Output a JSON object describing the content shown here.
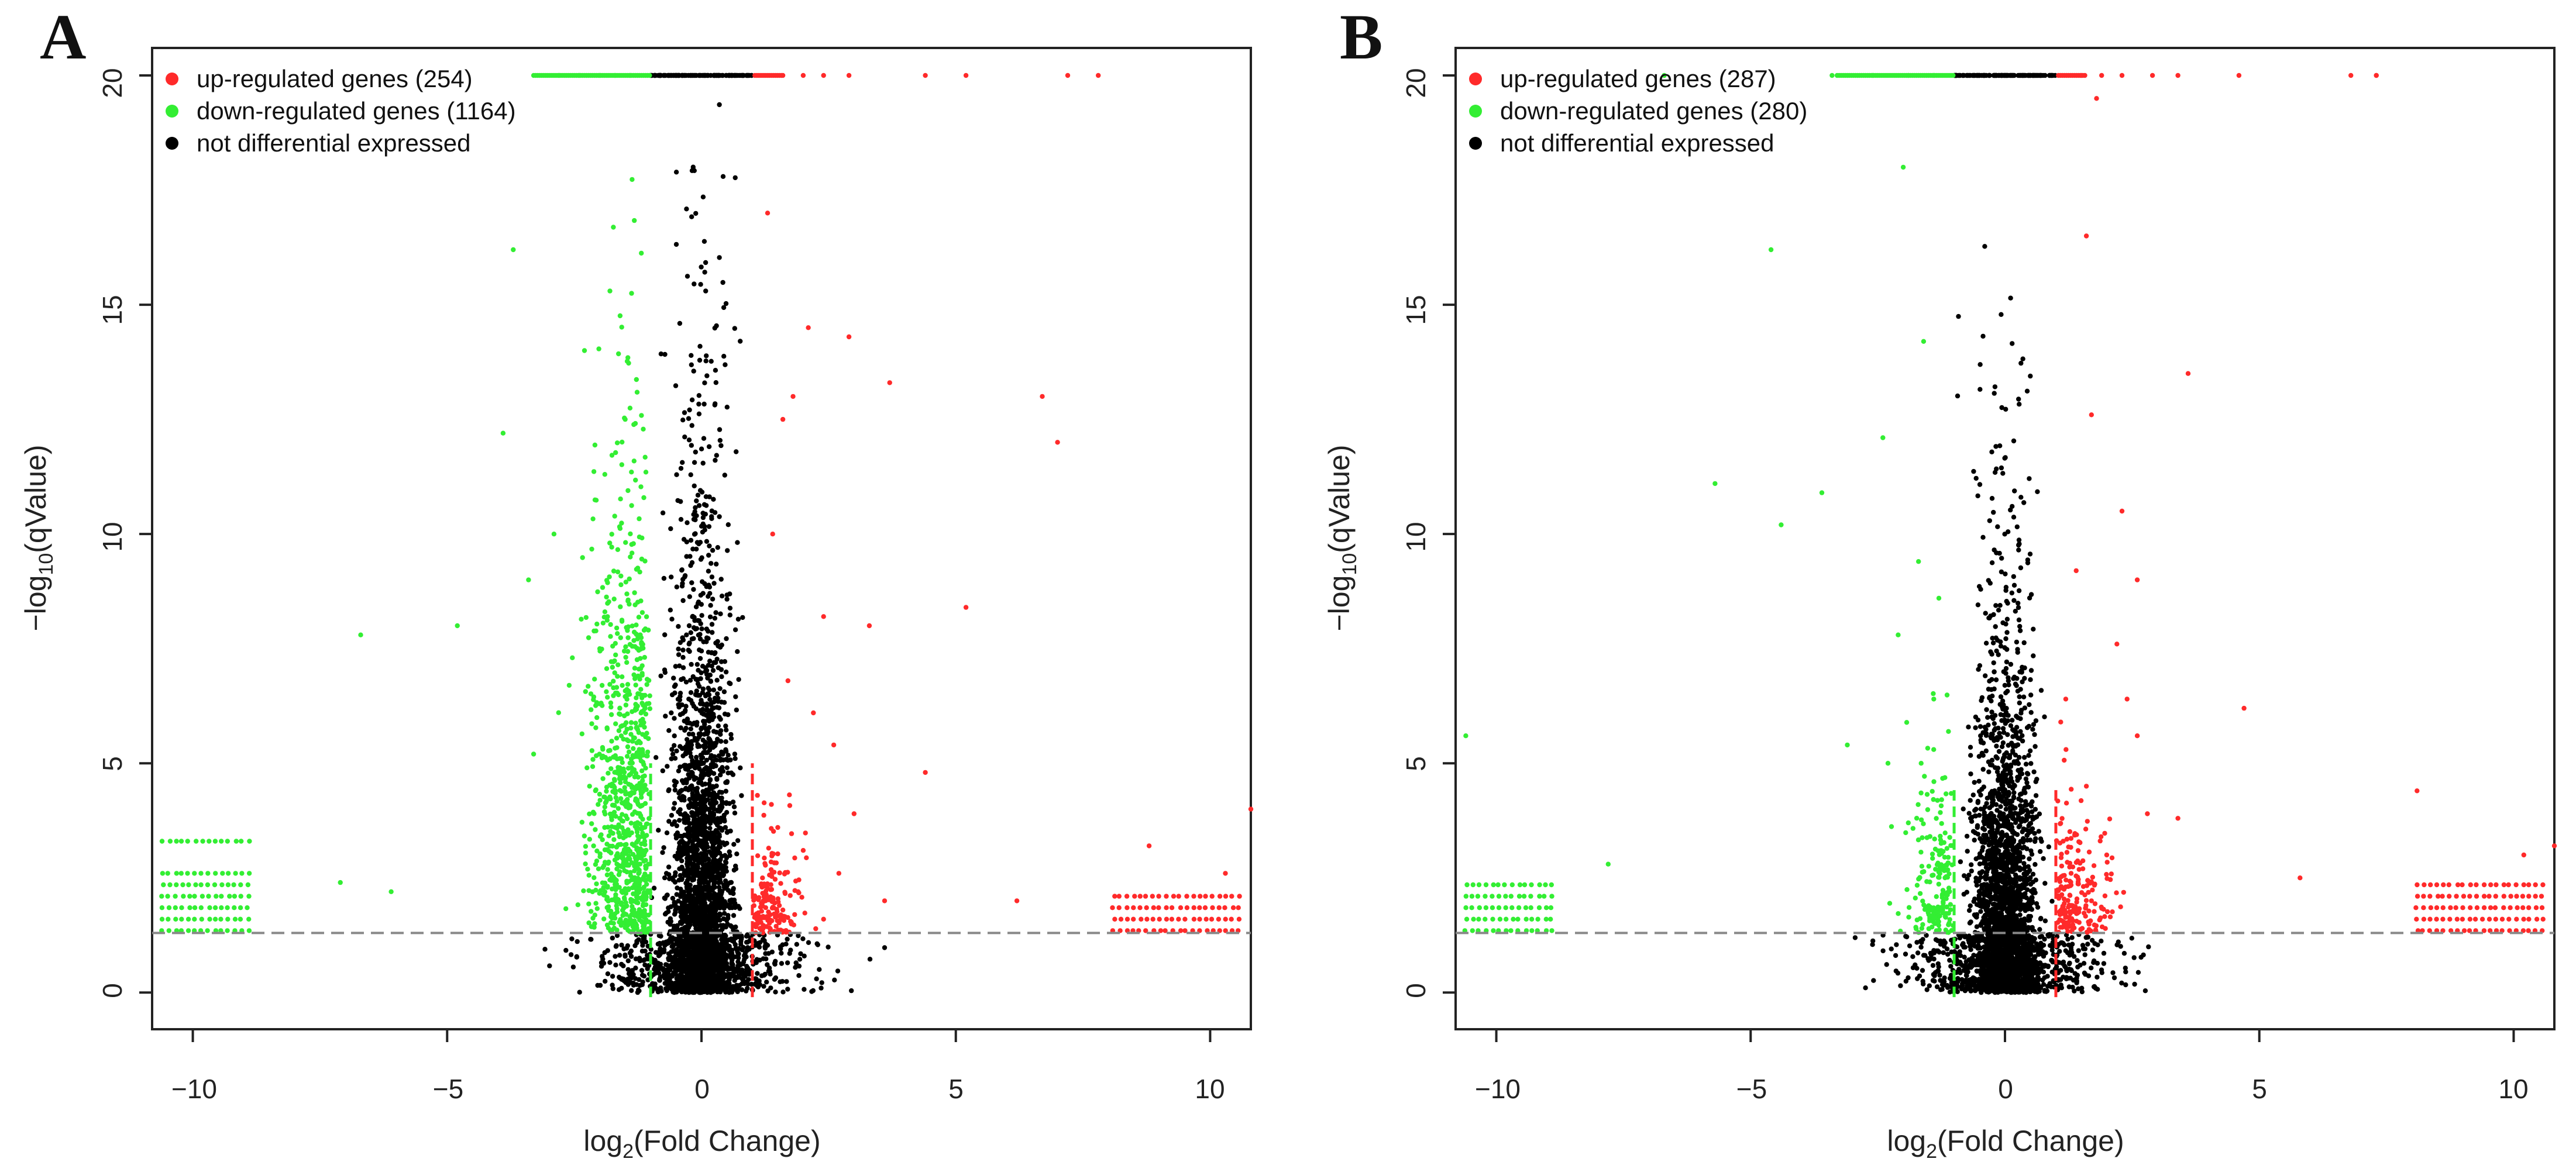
{
  "chart_data": [
    {
      "type": "scatter",
      "panel": "A",
      "title": "",
      "xlabel": "log2(Fold Change)",
      "ylabel": "-log10(qValue)",
      "xlim": [
        -10.8,
        10.8
      ],
      "ylim": [
        -0.8,
        20.6
      ],
      "xticks": [
        -10,
        -5,
        0,
        5,
        10
      ],
      "yticks": [
        0,
        5,
        10,
        15,
        20
      ],
      "grid": false,
      "legend_position": "top-left",
      "fc_threshold": 1,
      "q_threshold_line": 1.3,
      "series": [
        {
          "name": "up-regulated genes (254)",
          "color": "#ff2a2a",
          "count": 254
        },
        {
          "name": "down-regulated genes (1164)",
          "color": "#33ee33",
          "count": 1164
        },
        {
          "name": "not differential expressed",
          "color": "#000000"
        }
      ],
      "points": {
        "up": [
          [
            1.3,
            17
          ],
          [
            1.6,
            12.5
          ],
          [
            2.1,
            14.5
          ],
          [
            2.9,
            14.3
          ],
          [
            3.7,
            13.3
          ],
          [
            5.2,
            8.4
          ],
          [
            3.3,
            8
          ],
          [
            1.8,
            13
          ],
          [
            2.6,
            5.4
          ],
          [
            4.4,
            4.8
          ],
          [
            2.4,
            8.2
          ],
          [
            1.4,
            10
          ],
          [
            1.7,
            6.8
          ],
          [
            2.2,
            6.1
          ],
          [
            3.0,
            3.9
          ],
          [
            1.1,
            4.3
          ],
          [
            1.5,
            3.6
          ],
          [
            2.0,
            3.1
          ],
          [
            2.7,
            2.6
          ],
          [
            1.9,
            2.2
          ],
          [
            1.2,
            2.5
          ],
          [
            1.6,
            1.8
          ],
          [
            2.4,
            1.6
          ],
          [
            3.6,
            2.0
          ],
          [
            6.2,
            2.0
          ],
          [
            8.8,
            3.2
          ],
          [
            10.3,
            2.6
          ],
          [
            10.8,
            4.0
          ],
          [
            7.0,
            12
          ],
          [
            6.7,
            13
          ]
        ],
        "down": [
          [
            -3.7,
            16.2
          ],
          [
            -2.3,
            14
          ],
          [
            -3.9,
            12.2
          ],
          [
            -1.8,
            15.3
          ],
          [
            -4.8,
            8
          ],
          [
            -6.7,
            7.8
          ],
          [
            -3.3,
            5.2
          ],
          [
            -2.0,
            7.5
          ],
          [
            -1.4,
            9.5
          ],
          [
            -2.9,
            10
          ],
          [
            -1.5,
            12.5
          ],
          [
            -2.2,
            4.5
          ],
          [
            -6.1,
            2.2
          ],
          [
            -7.1,
            2.4
          ],
          [
            -1.6,
            3.8
          ],
          [
            -3.4,
            9.0
          ],
          [
            -2.6,
            6.7
          ],
          [
            -1.9,
            11.3
          ]
        ],
        "flat_groups": [
          {
            "kind": "down",
            "x_min": -10.6,
            "x_max": -8.9,
            "y_values": [
              1.35,
              1.6,
              1.85,
              2.1,
              2.35,
              2.6,
              3.3
            ]
          },
          {
            "kind": "up",
            "x_min": 8.1,
            "x_max": 10.7,
            "y_values": [
              1.35,
              1.6,
              1.85,
              2.1
            ]
          }
        ],
        "capped_up_x": [
          1.6,
          2.0,
          2.4,
          2.9,
          4.4,
          5.2,
          7.2,
          7.8
        ],
        "capped_down_x": [
          -2.8,
          -2.4,
          -2.0,
          -1.7,
          -1.4
        ]
      }
    },
    {
      "type": "scatter",
      "panel": "B",
      "title": "",
      "xlabel": "log2(Fold Change)",
      "ylabel": "-log10(qValue)",
      "xlim": [
        -10.8,
        10.8
      ],
      "ylim": [
        -0.8,
        20.6
      ],
      "xticks": [
        -10,
        -5,
        0,
        5,
        10
      ],
      "yticks": [
        0,
        5,
        10,
        15,
        20
      ],
      "grid": false,
      "legend_position": "top-left",
      "fc_threshold": 1,
      "q_threshold_line": 1.3,
      "series": [
        {
          "name": "up-regulated genes (287)",
          "color": "#ff2a2a",
          "count": 287
        },
        {
          "name": "down-regulated genes (280)",
          "color": "#33ee33",
          "count": 280
        },
        {
          "name": "not differential expressed",
          "color": "#000000"
        }
      ],
      "points": {
        "up": [
          [
            1.8,
            19.5
          ],
          [
            1.6,
            16.5
          ],
          [
            3.6,
            13.5
          ],
          [
            1.7,
            12.6
          ],
          [
            2.3,
            10.5
          ],
          [
            2.6,
            9.0
          ],
          [
            1.4,
            9.2
          ],
          [
            2.2,
            7.6
          ],
          [
            2.4,
            6.4
          ],
          [
            4.7,
            6.2
          ],
          [
            2.6,
            5.6
          ],
          [
            1.6,
            4.5
          ],
          [
            2.8,
            3.9
          ],
          [
            2.0,
            3.0
          ],
          [
            1.3,
            2.6
          ],
          [
            1.7,
            2.0
          ],
          [
            3.4,
            3.8
          ],
          [
            5.8,
            2.5
          ],
          [
            8.1,
            4.4
          ],
          [
            10.2,
            3.0
          ],
          [
            10.8,
            3.2
          ],
          [
            1.2,
            5.3
          ],
          [
            7.3,
            20.0
          ]
        ],
        "down": [
          [
            -4.6,
            16.2
          ],
          [
            -1.6,
            14.2
          ],
          [
            -2.4,
            12.1
          ],
          [
            -2.0,
            18.0
          ],
          [
            -5.7,
            11.1
          ],
          [
            -3.6,
            10.9
          ],
          [
            -4.4,
            10.2
          ],
          [
            -1.7,
            9.4
          ],
          [
            -1.3,
            8.6
          ],
          [
            -2.1,
            7.8
          ],
          [
            -3.1,
            5.4
          ],
          [
            -2.3,
            5.0
          ],
          [
            -1.9,
            3.7
          ],
          [
            -7.8,
            2.8
          ],
          [
            -10.6,
            5.6
          ],
          [
            -1.4,
            6.4
          ]
        ],
        "flat_groups": [
          {
            "kind": "down",
            "x_min": -10.6,
            "x_max": -8.9,
            "y_values": [
              1.35,
              1.6,
              1.85,
              2.1,
              2.35
            ]
          },
          {
            "kind": "up",
            "x_min": 8.1,
            "x_max": 10.7,
            "y_values": [
              1.35,
              1.6,
              1.85,
              2.1,
              2.35
            ]
          }
        ],
        "capped_up_x": [
          1.5,
          1.9,
          2.3,
          2.9,
          3.4,
          4.6,
          6.8,
          7.3
        ],
        "capped_down_x": [
          -6.7,
          -3.4,
          -2.6,
          -1.9,
          -1.4
        ]
      }
    }
  ],
  "panels": [
    {
      "letter": "A",
      "legend": [
        "up-regulated genes (254)",
        "down-regulated genes (1164)",
        "not differential expressed"
      ],
      "ylabel_main": "−log",
      "ylabel_sub": "10",
      "ylabel_rest": "(qValue)",
      "xlabel_main": "log",
      "xlabel_sub": "2",
      "xlabel_rest": "(Fold Change)",
      "xtick_labels": [
        "−10",
        "−5",
        "0",
        "5",
        "10"
      ],
      "ytick_labels": [
        "0",
        "5",
        "10",
        "15",
        "20"
      ]
    },
    {
      "letter": "B",
      "legend": [
        "up-regulated genes (287)",
        "down-regulated genes (280)",
        "not differential expressed"
      ],
      "ylabel_main": "−log",
      "ylabel_sub": "10",
      "ylabel_rest": "(qValue)",
      "xlabel_main": "log",
      "xlabel_sub": "2",
      "xlabel_rest": "(Fold Change)",
      "xtick_labels": [
        "−10",
        "−5",
        "0",
        "5",
        "10"
      ],
      "ytick_labels": [
        "0",
        "5",
        "10",
        "15",
        "20"
      ]
    }
  ],
  "colors": {
    "up": "#ff2a2a",
    "down": "#33ee33",
    "ns": "#000000",
    "threshold_line": "#888888"
  }
}
